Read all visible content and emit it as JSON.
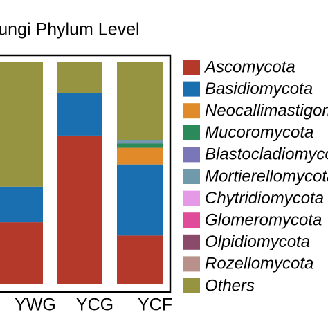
{
  "chart_data": {
    "type": "stacked_bar",
    "title": "Fungi Phylum Level",
    "categories": [
      "YWG",
      "YCG",
      "YCF"
    ],
    "ylim": [
      0,
      100
    ],
    "series": [
      {
        "name": "Ascomycota",
        "color": "#b5392a",
        "values": [
          28,
          67,
          22
        ]
      },
      {
        "name": "Basidiomycota",
        "color": "#1a6fb0",
        "values": [
          16,
          19,
          32
        ]
      },
      {
        "name": "Neocallimastigomycota",
        "color": "#e08a2a",
        "values": [
          0,
          0,
          7.5
        ]
      },
      {
        "name": "Mucoromycota",
        "color": "#2a8a5a",
        "values": [
          0,
          0,
          2
        ]
      },
      {
        "name": "Blastocladiomycota",
        "color": "#7b76b8",
        "values": [
          0,
          0,
          0.5
        ]
      },
      {
        "name": "Mortierellomycota",
        "color": "#6f9aac",
        "values": [
          0,
          0,
          1
        ]
      },
      {
        "name": "Chytridiomycota",
        "color": "#e59ae8",
        "values": [
          0,
          0,
          0
        ]
      },
      {
        "name": "Glomeromycota",
        "color": "#e14c9a",
        "values": [
          0,
          0,
          0
        ]
      },
      {
        "name": "Olpidiomycota",
        "color": "#8a4a6a",
        "values": [
          0,
          0,
          0
        ]
      },
      {
        "name": "Rozellomycota",
        "color": "#b8928a",
        "values": [
          0,
          0,
          0
        ]
      },
      {
        "name": "Others",
        "color": "#969440",
        "values": [
          56,
          14,
          35
        ]
      }
    ]
  }
}
